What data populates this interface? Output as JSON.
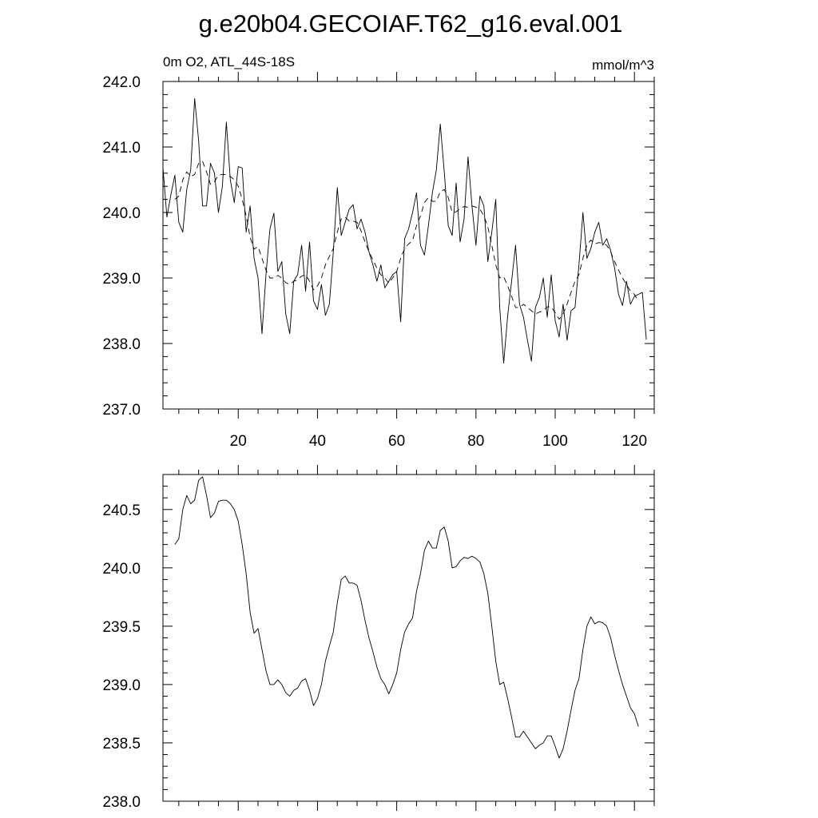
{
  "title": "g.e20b04.GECOIAF.T62_g16.eval.001",
  "colors": {
    "line": "#000000",
    "frame": "#000000",
    "background": "#ffffff"
  },
  "chart_data": [
    {
      "type": "line",
      "subtitle_left": "0m O2, ATL_44S-18S",
      "subtitle_right": "mmol/m^3",
      "xlim": [
        1,
        125
      ],
      "ylim": [
        237.0,
        242.0
      ],
      "x_ticks": [
        20,
        40,
        60,
        80,
        100,
        120
      ],
      "y_ticks": [
        "237.0",
        "238.0",
        "239.0",
        "240.0",
        "241.0",
        "242.0"
      ],
      "grid": false,
      "series": [
        {
          "style": "solid",
          "x_start": 1,
          "values": [
            240.68,
            239.93,
            240.27,
            240.57,
            239.85,
            239.7,
            240.35,
            240.65,
            241.74,
            241.1,
            240.1,
            240.1,
            240.75,
            240.6,
            240.0,
            240.4,
            241.38,
            240.5,
            240.15,
            240.7,
            240.68,
            239.7,
            240.1,
            239.3,
            239.0,
            238.15,
            239.05,
            239.75,
            239.99,
            239.1,
            239.25,
            238.45,
            238.15,
            238.95,
            239.05,
            239.5,
            238.8,
            239.55,
            238.65,
            238.52,
            238.9,
            238.43,
            238.6,
            239.4,
            240.38,
            239.65,
            239.85,
            240.05,
            240.12,
            239.75,
            239.9,
            239.7,
            239.4,
            239.2,
            238.95,
            239.2,
            238.85,
            238.95,
            239.05,
            239.1,
            238.33,
            239.6,
            239.75,
            240.0,
            240.3,
            239.5,
            239.35,
            239.8,
            240.3,
            240.65,
            241.35,
            240.62,
            239.8,
            239.65,
            240.45,
            239.55,
            239.9,
            240.85,
            240.1,
            239.5,
            240.25,
            240.1,
            239.25,
            239.7,
            240.2,
            238.55,
            237.7,
            238.42,
            238.95,
            239.5,
            238.6,
            238.4,
            238.05,
            237.73,
            238.55,
            238.7,
            239.0,
            238.4,
            239.05,
            238.35,
            238.1,
            238.6,
            238.05,
            238.5,
            238.55,
            239.2,
            240.0,
            239.3,
            239.45,
            239.7,
            239.85,
            239.5,
            239.6,
            239.42,
            239.15,
            238.75,
            238.58,
            238.95,
            238.6,
            238.72,
            238.75,
            238.78,
            238.06
          ]
        },
        {
          "style": "dashed",
          "x_start": 4,
          "values": [
            240.2,
            240.25,
            240.5,
            240.62,
            240.55,
            240.58,
            240.75,
            240.78,
            240.62,
            240.43,
            240.47,
            240.57,
            240.58,
            240.58,
            240.55,
            240.5,
            240.4,
            240.2,
            239.95,
            239.62,
            239.44,
            239.48,
            239.3,
            239.12,
            239.0,
            239.0,
            239.04,
            239.0,
            238.93,
            238.9,
            238.95,
            238.97,
            239.03,
            239.05,
            238.95,
            238.82,
            238.88,
            239.0,
            239.2,
            239.33,
            239.45,
            239.7,
            239.9,
            239.93,
            239.87,
            239.87,
            239.85,
            239.72,
            239.55,
            239.4,
            239.28,
            239.15,
            239.05,
            239.0,
            238.92,
            239.0,
            239.1,
            239.3,
            239.45,
            239.52,
            239.57,
            239.8,
            239.95,
            240.15,
            240.23,
            240.17,
            240.17,
            240.32,
            240.35,
            240.23,
            240.0,
            240.01,
            240.06,
            240.09,
            240.08,
            240.1,
            240.08,
            240.05,
            239.95,
            239.78,
            239.5,
            239.2,
            239.0,
            239.02,
            238.88,
            238.72,
            238.55,
            238.55,
            238.6,
            238.55,
            238.5,
            238.45,
            238.48,
            238.5,
            238.56,
            238.56,
            238.47,
            238.37,
            238.45,
            238.6,
            238.78,
            238.95,
            239.05,
            239.3,
            239.5,
            239.58,
            239.52,
            239.54,
            239.53,
            239.5,
            239.4,
            239.25,
            239.12,
            239.0,
            238.9,
            238.8,
            238.75,
            238.64
          ]
        }
      ]
    },
    {
      "type": "line",
      "xlim": [
        1,
        125
      ],
      "ylim": [
        238.0,
        240.8
      ],
      "y_ticks": [
        "238.0",
        "238.5",
        "239.0",
        "239.5",
        "240.0",
        "240.5"
      ],
      "x_tick_positions": [
        20,
        40,
        60,
        80,
        100,
        120
      ],
      "grid": false,
      "series": [
        {
          "style": "solid",
          "x_start": 4,
          "values": [
            240.2,
            240.25,
            240.5,
            240.62,
            240.55,
            240.58,
            240.75,
            240.78,
            240.62,
            240.43,
            240.47,
            240.57,
            240.58,
            240.58,
            240.55,
            240.5,
            240.4,
            240.2,
            239.95,
            239.62,
            239.44,
            239.48,
            239.3,
            239.12,
            239.0,
            239.0,
            239.04,
            239.0,
            238.93,
            238.9,
            238.95,
            238.97,
            239.03,
            239.05,
            238.95,
            238.82,
            238.88,
            239.0,
            239.2,
            239.33,
            239.45,
            239.7,
            239.9,
            239.93,
            239.87,
            239.87,
            239.85,
            239.72,
            239.55,
            239.4,
            239.28,
            239.15,
            239.05,
            239.0,
            238.92,
            239.0,
            239.1,
            239.3,
            239.45,
            239.52,
            239.57,
            239.8,
            239.95,
            240.15,
            240.23,
            240.17,
            240.17,
            240.32,
            240.35,
            240.23,
            240.0,
            240.01,
            240.06,
            240.09,
            240.08,
            240.1,
            240.08,
            240.05,
            239.95,
            239.78,
            239.5,
            239.2,
            239.0,
            239.02,
            238.88,
            238.72,
            238.55,
            238.55,
            238.6,
            238.55,
            238.5,
            238.45,
            238.48,
            238.5,
            238.56,
            238.56,
            238.47,
            238.37,
            238.45,
            238.6,
            238.78,
            238.95,
            239.05,
            239.3,
            239.5,
            239.58,
            239.52,
            239.54,
            239.53,
            239.5,
            239.4,
            239.25,
            239.12,
            239.0,
            238.9,
            238.8,
            238.75,
            238.64
          ]
        }
      ]
    }
  ]
}
